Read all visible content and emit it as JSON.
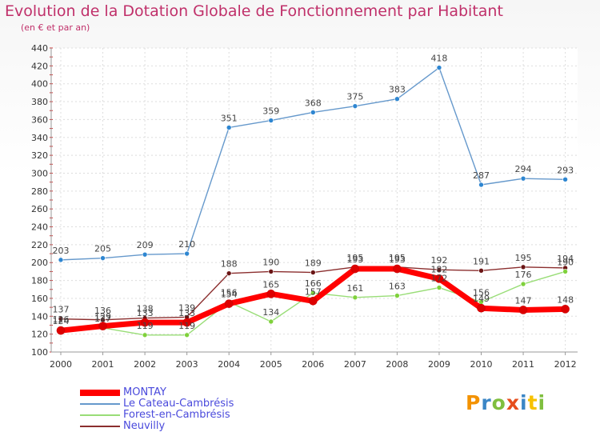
{
  "chart_data": {
    "type": "line",
    "title": "Evolution de la Dotation Globale de Fonctionnement par Habitant",
    "subtitle": "(en € et par an)",
    "xlabel": "",
    "ylabel": "",
    "ylim": [
      100,
      440
    ],
    "y_ticks": [
      100,
      120,
      140,
      160,
      180,
      200,
      220,
      240,
      260,
      280,
      300,
      320,
      340,
      360,
      380,
      400,
      420,
      440
    ],
    "x": [
      "2000",
      "2001",
      "2002",
      "2003",
      "2004",
      "2005",
      "2006",
      "2007",
      "2008",
      "2009",
      "2010",
      "2011",
      "2012"
    ],
    "grid": true,
    "legend_position": "bottom-left",
    "series": [
      {
        "name": "Le Cateau-Cambrésis",
        "color": "#6699cc",
        "marker_color": "#2e86d1",
        "values": [
          203,
          205,
          209,
          210,
          351,
          359,
          368,
          375,
          383,
          418,
          287,
          294,
          293
        ],
        "labels": [
          "203",
          "205",
          "209",
          "210",
          "351",
          "359",
          "368",
          "375",
          "383",
          "418",
          "287",
          "294",
          "293"
        ]
      },
      {
        "name": "Neuvilly",
        "color": "#8b2e2e",
        "marker_color": "#6a1515",
        "values": [
          137,
          136,
          138,
          139,
          188,
          190,
          189,
          195,
          195,
          192,
          191,
          195,
          194
        ],
        "labels": [
          "137",
          "136",
          "138",
          "139",
          "188",
          "190",
          "189",
          "195",
          "195",
          "192",
          "191",
          "195",
          "194"
        ]
      },
      {
        "name": "Forest-en-Cambrésis",
        "color": "#99dd77",
        "marker_color": "#7fd13b",
        "values": [
          126,
          127,
          119,
          119,
          156,
          134,
          166,
          161,
          163,
          172,
          156,
          176,
          190
        ],
        "labels": [
          "126",
          "127",
          "119",
          "119",
          "156",
          "134",
          "166",
          "161",
          "163",
          "172",
          "156",
          "176",
          "190"
        ]
      },
      {
        "name": "MONTAY",
        "color": "#ff0000",
        "marker_color": "#dd0000",
        "values": [
          124,
          129,
          133,
          133,
          154,
          165,
          157,
          193,
          193,
          182,
          149,
          147,
          148
        ],
        "labels": [
          "124",
          "129",
          "133",
          "133",
          "154",
          "165",
          "157",
          "193",
          "193",
          "182",
          "149",
          "147",
          "148"
        ]
      }
    ],
    "legend_order": [
      "MONTAY",
      "Le Cateau-Cambrésis",
      "Forest-en-Cambrésis",
      "Neuvilly"
    ]
  },
  "brand": {
    "text": "Proxiti",
    "colors": [
      "#f39200",
      "#3b86c6",
      "#7fbf3f",
      "#e64e1d",
      "#3b86c6",
      "#f7c100",
      "#7fbf3f"
    ]
  }
}
